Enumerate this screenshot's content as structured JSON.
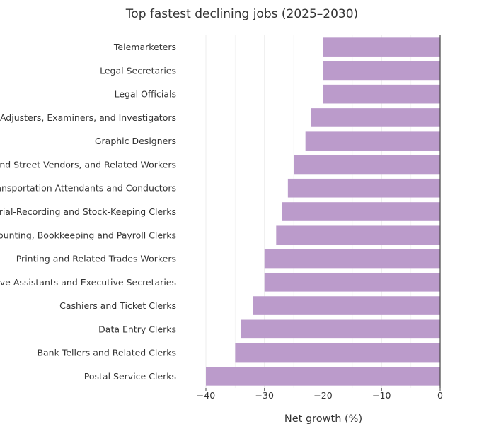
{
  "chart_data": {
    "type": "bar",
    "orientation": "horizontal",
    "title": "Top fastest declining jobs (2025–2030)",
    "xlabel": "Net growth (%)",
    "ylabel": "",
    "xlim": [
      -40,
      0
    ],
    "xticks": [
      -40,
      -30,
      -20,
      -10,
      0
    ],
    "xtick_labels": [
      "−40",
      "−30",
      "−20",
      "−10",
      "0"
    ],
    "grid": true,
    "bar_color": "#bb9bcb",
    "categories": [
      "Telemarketers",
      "Legal Secretaries",
      "Legal Officials",
      "Claims Adjusters, Examiners, and Investigators",
      "Graphic Designers",
      "Door-To-Door Sales Workers, News and Street Vendors, and Related Workers",
      "Transportation Attendants and Conductors",
      "Material-Recording and Stock-Keeping Clerks",
      "Accounting, Bookkeeping and Payroll Clerks",
      "Printing and Related Trades Workers",
      "Administrative Assistants and Executive Secretaries",
      "Cashiers and Ticket Clerks",
      "Data Entry Clerks",
      "Bank Tellers and Related Clerks",
      "Postal Service Clerks"
    ],
    "values": [
      -20,
      -20,
      -20,
      -22,
      -23,
      -25,
      -26,
      -27,
      -28,
      -30,
      -30,
      -32,
      -34,
      -35,
      -40
    ]
  }
}
